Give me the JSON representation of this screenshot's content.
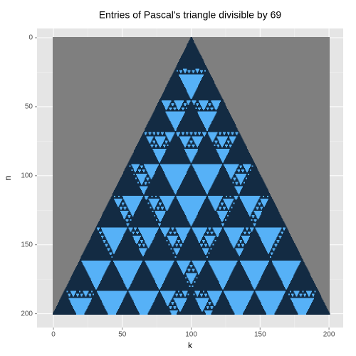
{
  "chart_data": {
    "type": "pascal-mod",
    "title": "Entries of Pascal's triangle divisible by 69",
    "x_label": "k",
    "y_label": "n",
    "modulus": 69,
    "n_max": 200,
    "xlim": [
      -11.9,
      210.3
    ],
    "ylim": [
      -6.7,
      210
    ],
    "xticks": [
      0,
      50,
      100,
      150,
      200
    ],
    "yticks": [
      0,
      50,
      100,
      150,
      200
    ],
    "xminor": [
      25,
      75,
      125,
      175
    ],
    "yminor": [
      25,
      75,
      125,
      175
    ],
    "divisible_color": "#56B1F7",
    "other_color": "#132B43",
    "background_color": "#7f7f7f",
    "grid": true
  }
}
